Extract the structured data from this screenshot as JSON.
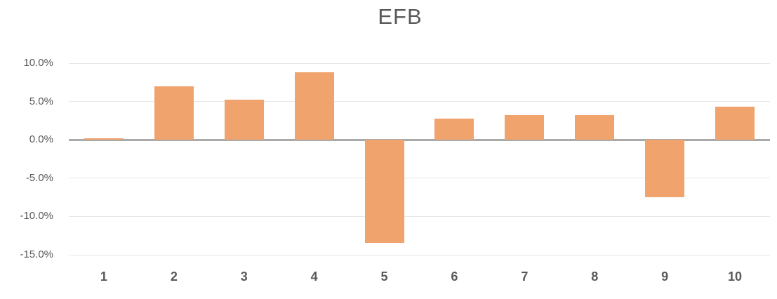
{
  "chart_data": {
    "type": "bar",
    "title": "EFB",
    "categories": [
      "1",
      "2",
      "3",
      "4",
      "5",
      "6",
      "7",
      "8",
      "9",
      "10"
    ],
    "values": [
      0.2,
      7.0,
      5.2,
      8.8,
      -13.4,
      2.8,
      3.2,
      3.2,
      -7.5,
      4.3
    ],
    "value_unit": "%",
    "xlabel": "",
    "ylabel": "",
    "ylim": [
      -15,
      10
    ],
    "y_ticks": [
      {
        "value": 10,
        "label": "10.0%"
      },
      {
        "value": 5,
        "label": "5.0%"
      },
      {
        "value": 0,
        "label": "0.0%"
      },
      {
        "value": -5,
        "label": "-5.0%"
      },
      {
        "value": -10,
        "label": "-10.0%"
      },
      {
        "value": -15,
        "label": "-15.0%"
      }
    ],
    "grid": true,
    "legend": "none",
    "colors": {
      "bar_fill": "#F0A36D",
      "gridline": "#E7E7E7",
      "zero_axis": "#A9A9A9",
      "tick_label": "#595959",
      "title": "#595959"
    }
  }
}
